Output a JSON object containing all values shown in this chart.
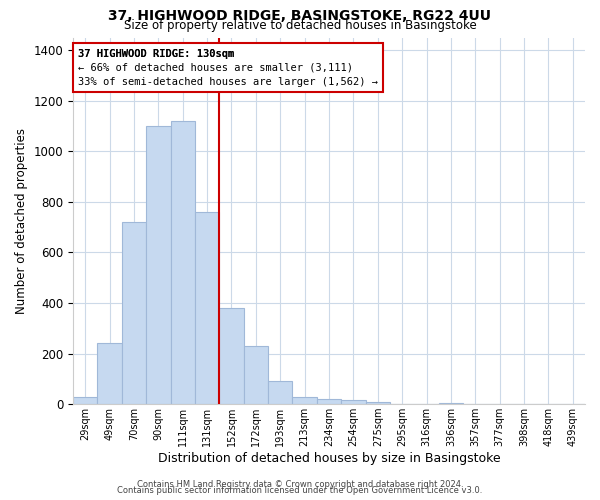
{
  "title": "37, HIGHWOOD RIDGE, BASINGSTOKE, RG22 4UU",
  "subtitle": "Size of property relative to detached houses in Basingstoke",
  "xlabel": "Distribution of detached houses by size in Basingstoke",
  "ylabel": "Number of detached properties",
  "bar_labels": [
    "29sqm",
    "49sqm",
    "70sqm",
    "90sqm",
    "111sqm",
    "131sqm",
    "152sqm",
    "172sqm",
    "193sqm",
    "213sqm",
    "234sqm",
    "254sqm",
    "275sqm",
    "295sqm",
    "316sqm",
    "336sqm",
    "357sqm",
    "377sqm",
    "398sqm",
    "418sqm",
    "439sqm"
  ],
  "bar_values": [
    30,
    240,
    720,
    1100,
    1120,
    760,
    380,
    230,
    90,
    30,
    20,
    15,
    10,
    0,
    0,
    5,
    0,
    0,
    0,
    0,
    0
  ],
  "bar_color": "#c6d9f0",
  "bar_edge_color": "#a0b8d8",
  "vline_pos": 5.5,
  "vline_color": "#cc0000",
  "ylim": [
    0,
    1450
  ],
  "yticks": [
    0,
    200,
    400,
    600,
    800,
    1000,
    1200,
    1400
  ],
  "ann_bold": "37 HIGHWOOD RIDGE: 130sqm",
  "ann_line1": "← 66% of detached houses are smaller (3,111)",
  "ann_line2": "33% of semi-detached houses are larger (1,562) →",
  "ann_box_fc": "#ffffff",
  "ann_box_ec": "#cc0000",
  "footer1": "Contains HM Land Registry data © Crown copyright and database right 2024.",
  "footer2": "Contains public sector information licensed under the Open Government Licence v3.0.",
  "bg_color": "#ffffff",
  "grid_color": "#ccd9e8"
}
